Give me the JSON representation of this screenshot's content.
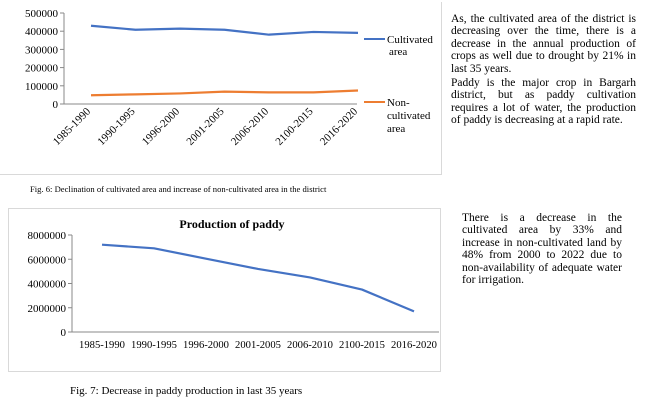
{
  "paragraphs": {
    "p1": "As, the cultivated area of the district is decreasing over the time, there is a decrease in the annual production of crops as well due to drought by 21% in last 35 years.",
    "p2": "Paddy is the major crop in Bargarh district, but as paddy cultivation requires a lot of water, the production of paddy is decreasing at a rapid rate.",
    "p3": "There is a decrease in the cultivated area by 33% and increase in non-cultivated land by 48% from 2000 to 2022 due to non-availability of adequate water for irrigation."
  },
  "captions": {
    "fig6": "Fig. 6: Declination of cultivated area and increase of non-cultivated area in the district",
    "fig7": "Fig. 7: Decrease in paddy production in last 35 years"
  },
  "chart_data": [
    {
      "type": "line",
      "title": "",
      "categories": [
        "1985-1990",
        "1990-1995",
        "1996-2000",
        "2001-2005",
        "2006-2010",
        "2100-2015",
        "2016-2020"
      ],
      "series": [
        {
          "name": "Cultivated area",
          "values": [
            430000,
            408000,
            414000,
            408000,
            381000,
            396000,
            391000
          ],
          "color": "#4472c4"
        },
        {
          "name": "Non-cultivated area",
          "values": [
            48000,
            53000,
            58000,
            68000,
            64000,
            64000,
            74000
          ],
          "color": "#ed7d31"
        }
      ],
      "ylim": [
        0,
        500000
      ],
      "yticks": [
        "0",
        "100000",
        "200000",
        "300000",
        "400000",
        "500000"
      ],
      "legend_position": "right",
      "grid": false
    },
    {
      "type": "line",
      "title": "Production of paddy",
      "categories": [
        "1985-1990",
        "1990-1995",
        "1996-2000",
        "2001-2005",
        "2006-2010",
        "2100-2015",
        "2016-2020"
      ],
      "series": [
        {
          "values": [
            7200000,
            6900000,
            6050000,
            5200000,
            4500000,
            3500000,
            1700000
          ],
          "color": "#4472c4"
        }
      ],
      "ylim": [
        0,
        8000000
      ],
      "yticks": [
        "0",
        "2000000",
        "4000000",
        "6000000",
        "8000000"
      ],
      "grid": false
    }
  ]
}
